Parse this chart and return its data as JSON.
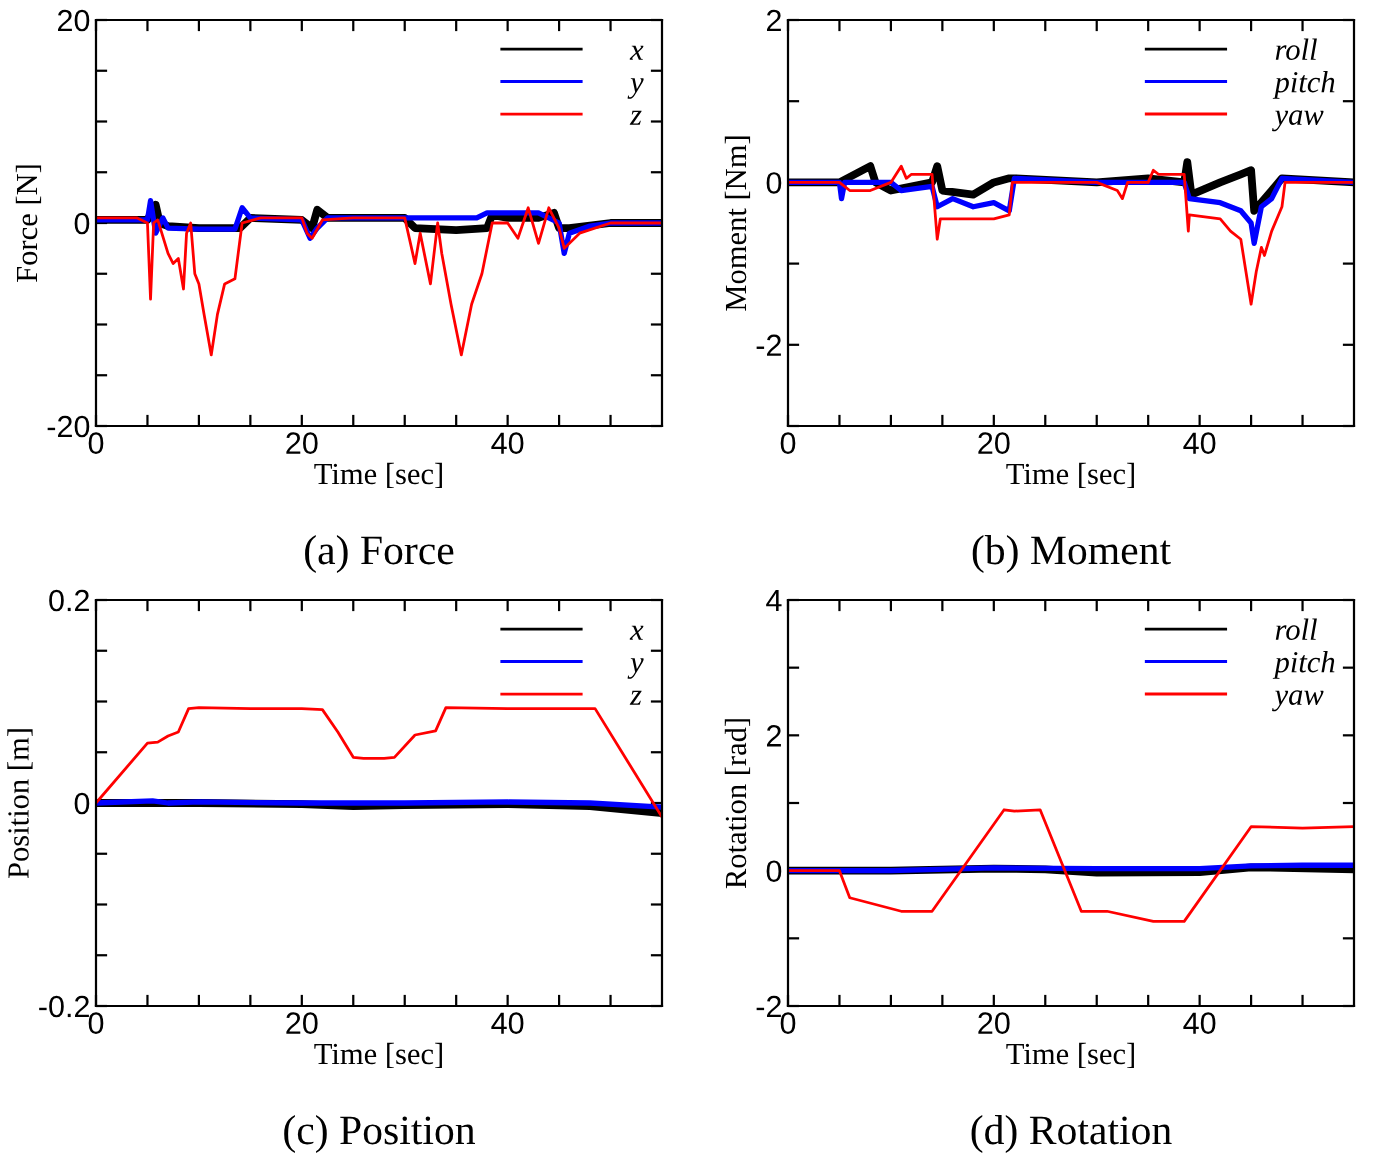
{
  "chart_data": [
    {
      "type": "line",
      "xlabel": "Time [sec]",
      "ylabel": "Force [N]",
      "annotations": [
        "(a) Force"
      ],
      "legend": "top right",
      "grid": false,
      "xlim": [
        0,
        55
      ],
      "ylim": [
        -20,
        20
      ],
      "xticks": [
        0,
        {
          "value": 5,
          "label": null
        },
        {
          "value": 10,
          "label": null
        },
        {
          "value": 15,
          "label": null
        },
        20,
        {
          "value": 25,
          "label": null
        },
        {
          "value": 30,
          "label": null
        },
        {
          "value": 35,
          "label": null
        },
        40,
        {
          "value": 45,
          "label": null
        },
        {
          "value": 50,
          "label": null
        }
      ],
      "yticks": [
        -20,
        {
          "value": -15,
          "label": null
        },
        {
          "value": -10,
          "label": null
        },
        {
          "value": -5,
          "label": null
        },
        0,
        {
          "value": 5,
          "label": null
        },
        {
          "value": 10,
          "label": null
        },
        {
          "value": 15,
          "label": null
        },
        20
      ],
      "series": [
        {
          "name": "x",
          "color": "#000000",
          "x": [
            0,
            5,
            5.8,
            6.2,
            7,
            10,
            14,
            15,
            20,
            21,
            21.5,
            22.5,
            25,
            30,
            31,
            35,
            38,
            38.5,
            40,
            43,
            44.5,
            45,
            46,
            50,
            55
          ],
          "values": [
            0.3,
            0.3,
            1.8,
            0,
            -0.3,
            -0.5,
            -0.5,
            0.5,
            0.3,
            -0.5,
            1.3,
            0.5,
            0.5,
            0.5,
            -0.5,
            -0.7,
            -0.5,
            0.8,
            0.5,
            0.5,
            1,
            -0.5,
            -0.5,
            0,
            0
          ]
        },
        {
          "name": "y",
          "color": "#0000ff",
          "x": [
            0,
            5,
            5.3,
            5.8,
            6.5,
            7,
            10,
            13.5,
            14.2,
            15,
            20,
            20.8,
            21.5,
            22.5,
            30,
            33,
            37,
            38,
            40,
            43,
            45,
            45.5,
            46,
            48,
            50,
            55
          ],
          "values": [
            0.3,
            0.3,
            2.2,
            -1,
            0.5,
            -0.5,
            -0.6,
            -0.6,
            1.5,
            0.5,
            0.3,
            -1.5,
            -0.5,
            0.5,
            0.5,
            0.5,
            0.5,
            1,
            1,
            1,
            0,
            -3,
            -1,
            -0.3,
            0,
            0
          ]
        },
        {
          "name": "z",
          "color": "#ff0000",
          "x": [
            0,
            2,
            4,
            5,
            5.3,
            5.6,
            6,
            7,
            7.5,
            8,
            8.5,
            8.8,
            9.2,
            9.6,
            10,
            10.5,
            11.2,
            11.8,
            12.5,
            13.5,
            14.2,
            16,
            18,
            20,
            20.5,
            21,
            22,
            25,
            28,
            30,
            31,
            31.5,
            32.5,
            33.2,
            33.6,
            34.5,
            35.5,
            36.5,
            37.5,
            38.5,
            40,
            41,
            42,
            43,
            44,
            45,
            45.5,
            47,
            50,
            55
          ],
          "values": [
            0.5,
            0.5,
            0.5,
            0,
            -7.5,
            0,
            0.3,
            -3,
            -4,
            -3.5,
            -6.5,
            -1,
            0,
            -5,
            -6,
            -9,
            -13,
            -9,
            -6,
            -5.5,
            0,
            0.5,
            0.5,
            0.5,
            -1,
            -1.5,
            0.3,
            0.5,
            0.5,
            0.5,
            -4,
            -1,
            -6,
            0,
            -3,
            -8,
            -13,
            -8,
            -5,
            0,
            0,
            -1.5,
            1.5,
            -2,
            1.5,
            -0.5,
            -2.5,
            -1,
            0,
            0
          ]
        }
      ]
    },
    {
      "type": "line",
      "xlabel": "Time [sec]",
      "ylabel": "Moment [Nm]",
      "annotations": [
        "(b) Moment"
      ],
      "legend": "top right",
      "grid": false,
      "xlim": [
        0,
        55
      ],
      "ylim": [
        -3,
        2
      ],
      "xticks": [
        0,
        {
          "value": 5,
          "label": null
        },
        {
          "value": 10,
          "label": null
        },
        {
          "value": 15,
          "label": null
        },
        20,
        {
          "value": 25,
          "label": null
        },
        {
          "value": 30,
          "label": null
        },
        {
          "value": 35,
          "label": null
        },
        40,
        {
          "value": 45,
          "label": null
        },
        {
          "value": 50,
          "label": null
        }
      ],
      "yticks": [
        {
          "value": -3,
          "label": null
        },
        {
          "value": -2,
          "label": "-2"
        },
        {
          "value": -1,
          "label": null
        },
        0,
        {
          "value": 1,
          "label": null
        },
        2
      ],
      "series": [
        {
          "name": "roll",
          "color": "#000000",
          "x": [
            0,
            5,
            8,
            8.5,
            10,
            14,
            14.5,
            15,
            18,
            20,
            21.5,
            22,
            30,
            35,
            38.5,
            38.8,
            39.2,
            42,
            44,
            45,
            45.3,
            47,
            48,
            55
          ],
          "values": [
            0,
            0,
            0.2,
            0,
            -0.1,
            0,
            0.2,
            -0.1,
            -0.15,
            0,
            0.05,
            0.05,
            0,
            0.05,
            0,
            0.25,
            -0.15,
            0,
            0.1,
            0.15,
            -0.35,
            -0.1,
            0.05,
            0
          ]
        },
        {
          "name": "pitch",
          "color": "#0000ff",
          "x": [
            0,
            5,
            5.2,
            5.5,
            10,
            11,
            14,
            14.5,
            16,
            18,
            20,
            21.5,
            22,
            30,
            33,
            38.5,
            39,
            42,
            44,
            45,
            45.3,
            46,
            47,
            48,
            55
          ],
          "values": [
            0,
            0,
            -0.2,
            0,
            0,
            -0.1,
            -0.05,
            -0.3,
            -0.2,
            -0.3,
            -0.25,
            -0.35,
            0.05,
            0,
            0,
            0,
            -0.2,
            -0.25,
            -0.35,
            -0.5,
            -0.75,
            -0.3,
            -0.2,
            0.05,
            0
          ]
        },
        {
          "name": "yaw",
          "color": "#ff0000",
          "x": [
            0,
            5,
            6,
            8,
            10,
            11,
            11.5,
            12,
            14,
            14.5,
            14.8,
            16,
            20,
            21.5,
            21.8,
            22,
            30,
            32,
            32.5,
            33,
            35,
            35.5,
            36,
            38.5,
            38.9,
            39,
            42,
            43,
            44,
            44.5,
            45,
            45.5,
            46,
            46.3,
            47,
            48,
            48.3,
            50,
            55
          ],
          "values": [
            0,
            0,
            -0.1,
            -0.1,
            0,
            0.2,
            0.05,
            0.1,
            0.1,
            -0.7,
            -0.45,
            -0.45,
            -0.45,
            -0.4,
            0,
            0,
            0,
            -0.1,
            -0.2,
            0,
            0,
            0.15,
            0.1,
            0.1,
            -0.6,
            -0.4,
            -0.45,
            -0.6,
            -0.7,
            -1.1,
            -1.5,
            -1.1,
            -0.8,
            -0.9,
            -0.6,
            -0.3,
            0,
            0,
            0
          ]
        }
      ]
    },
    {
      "type": "line",
      "xlabel": "Time [sec]",
      "ylabel": "Position [m]",
      "annotations": [
        "(c) Position"
      ],
      "legend": "top right",
      "grid": false,
      "xlim": [
        0,
        55
      ],
      "ylim": [
        -0.2,
        0.2
      ],
      "xticks": [
        0,
        {
          "value": 5,
          "label": null
        },
        {
          "value": 10,
          "label": null
        },
        {
          "value": 15,
          "label": null
        },
        20,
        {
          "value": 25,
          "label": null
        },
        {
          "value": 30,
          "label": null
        },
        {
          "value": 35,
          "label": null
        },
        40,
        {
          "value": 45,
          "label": null
        },
        {
          "value": 50,
          "label": null
        }
      ],
      "yticks": [
        -0.2,
        {
          "value": -0.15,
          "label": null
        },
        {
          "value": -0.1,
          "label": null
        },
        {
          "value": -0.05,
          "label": null
        },
        0,
        {
          "value": 0.05,
          "label": null
        },
        {
          "value": 0.1,
          "label": null
        },
        {
          "value": 0.15,
          "label": null
        },
        0.2
      ],
      "series": [
        {
          "name": "x",
          "color": "#000000",
          "x": [
            0,
            10,
            20,
            25,
            30,
            40,
            48,
            55
          ],
          "values": [
            0,
            0,
            -0.001,
            -0.003,
            -0.002,
            -0.001,
            -0.003,
            -0.01
          ]
        },
        {
          "name": "y",
          "color": "#0000ff",
          "x": [
            0,
            5.5,
            7,
            10,
            20,
            30,
            40,
            48,
            55
          ],
          "values": [
            0,
            0.002,
            0,
            0.001,
            0,
            0,
            0.001,
            0,
            -0.004
          ]
        },
        {
          "name": "z",
          "color": "#ff0000",
          "x": [
            0,
            5,
            6,
            7,
            8,
            9,
            10,
            15,
            20,
            22,
            23.5,
            25,
            26,
            28,
            29,
            31,
            33,
            34,
            40,
            45,
            48.5,
            55
          ],
          "values": [
            0,
            0.059,
            0.06,
            0.066,
            0.07,
            0.093,
            0.094,
            0.093,
            0.093,
            0.092,
            0.07,
            0.045,
            0.044,
            0.044,
            0.045,
            0.067,
            0.071,
            0.094,
            0.093,
            0.093,
            0.093,
            -0.014
          ]
        }
      ]
    },
    {
      "type": "line",
      "xlabel": "Time [sec]",
      "ylabel": "Rotation [rad]",
      "annotations": [
        "(d) Rotation"
      ],
      "legend": "top right",
      "grid": false,
      "xlim": [
        0,
        55
      ],
      "ylim": [
        -2,
        4
      ],
      "xticks": [
        0,
        {
          "value": 5,
          "label": null
        },
        {
          "value": 10,
          "label": null
        },
        {
          "value": 15,
          "label": null
        },
        20,
        {
          "value": 25,
          "label": null
        },
        {
          "value": 30,
          "label": null
        },
        {
          "value": 35,
          "label": null
        },
        40,
        {
          "value": 45,
          "label": null
        },
        {
          "value": 50,
          "label": null
        }
      ],
      "yticks": [
        -2,
        {
          "value": -1,
          "label": null
        },
        0,
        {
          "value": 1,
          "label": null
        },
        2,
        {
          "value": 3,
          "label": null
        },
        4
      ],
      "series": [
        {
          "name": "roll",
          "color": "#000000",
          "x": [
            0,
            10,
            20,
            25,
            30,
            40,
            45,
            55
          ],
          "values": [
            0,
            0,
            0.03,
            0.02,
            -0.03,
            -0.02,
            0.05,
            0.02
          ]
        },
        {
          "name": "pitch",
          "color": "#0000ff",
          "x": [
            0,
            10,
            20,
            30,
            40,
            45,
            50,
            55
          ],
          "values": [
            0,
            0,
            0.04,
            0.03,
            0.03,
            0.07,
            0.08,
            0.08
          ]
        },
        {
          "name": "yaw",
          "color": "#ff0000",
          "x": [
            0,
            5,
            6,
            11,
            14,
            21,
            22,
            24.5,
            28.5,
            31,
            35.5,
            38.5,
            45,
            50,
            55
          ],
          "values": [
            0,
            0,
            -0.4,
            -0.6,
            -0.6,
            0.9,
            0.88,
            0.9,
            -0.6,
            -0.6,
            -0.75,
            -0.75,
            0.65,
            0.63,
            0.65
          ]
        }
      ]
    }
  ]
}
